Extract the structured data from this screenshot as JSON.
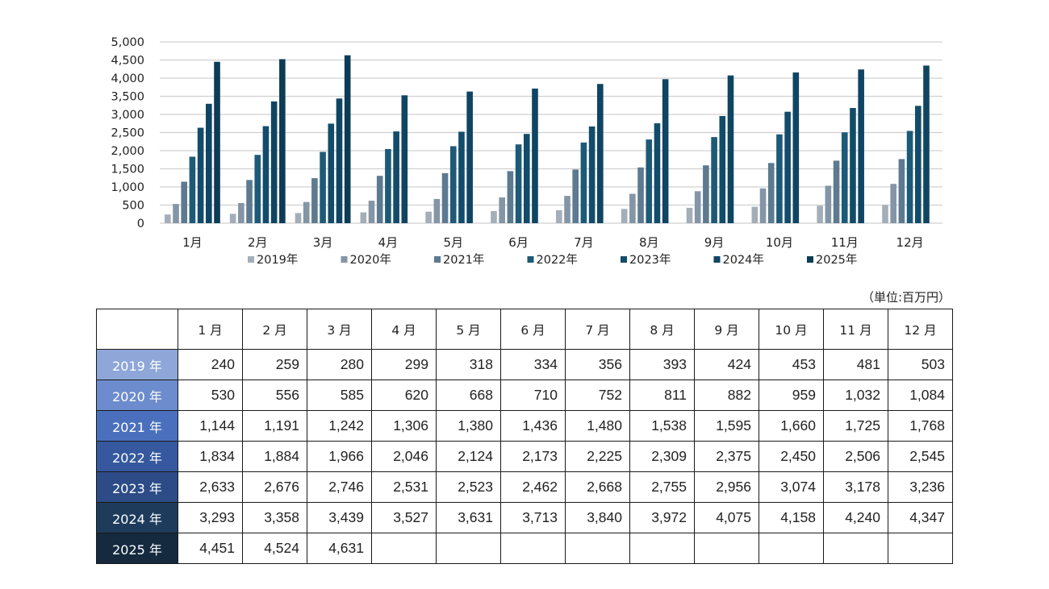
{
  "chart_data": {
    "type": "bar",
    "categories": [
      "1月",
      "2月",
      "3月",
      "4月",
      "5月",
      "6月",
      "7月",
      "8月",
      "9月",
      "10月",
      "11月",
      "12月"
    ],
    "ylim": [
      0,
      5000
    ],
    "y_ticks": [
      "0",
      "500",
      "1,000",
      "1,500",
      "2,000",
      "2,500",
      "3,000",
      "3,500",
      "4,000",
      "4,500",
      "5,000"
    ],
    "grid": true,
    "legend_position": "bottom",
    "series": [
      {
        "name": "2019年",
        "color": "#a4aeb8",
        "values": [
          240,
          259,
          280,
          299,
          318,
          334,
          356,
          393,
          424,
          453,
          481,
          503
        ]
      },
      {
        "name": "2020年",
        "color": "#8495a6",
        "values": [
          530,
          556,
          585,
          620,
          668,
          710,
          752,
          811,
          882,
          959,
          1032,
          1084
        ]
      },
      {
        "name": "2021年",
        "color": "#5d7a90",
        "values": [
          1144,
          1191,
          1242,
          1306,
          1380,
          1436,
          1480,
          1538,
          1595,
          1660,
          1725,
          1768
        ]
      },
      {
        "name": "2022年",
        "color": "#1d5a78",
        "values": [
          1834,
          1884,
          1966,
          2046,
          2124,
          2173,
          2225,
          2309,
          2375,
          2450,
          2506,
          2545
        ]
      },
      {
        "name": "2023年",
        "color": "#124c6a",
        "values": [
          2633,
          2676,
          2746,
          2531,
          2523,
          2462,
          2668,
          2755,
          2956,
          3074,
          3178,
          3236
        ]
      },
      {
        "name": "2024年",
        "color": "#0f4563",
        "values": [
          3293,
          3358,
          3439,
          3527,
          3631,
          3713,
          3840,
          3972,
          4075,
          4158,
          4240,
          4347
        ]
      },
      {
        "name": "2025年",
        "color": "#0c3b55",
        "values": [
          4451,
          4524,
          4631,
          null,
          null,
          null,
          null,
          null,
          null,
          null,
          null,
          null
        ]
      }
    ]
  },
  "table": {
    "unit_label": "（単位:百万円）",
    "header_months": [
      "1 月",
      "2 月",
      "3 月",
      "4 月",
      "5 月",
      "6 月",
      "7 月",
      "8 月",
      "9 月",
      "10 月",
      "11 月",
      "12 月"
    ],
    "rows": [
      {
        "year": "2019 年",
        "color": "#8ea6d8",
        "values": [
          "240",
          "259",
          "280",
          "299",
          "318",
          "334",
          "356",
          "393",
          "424",
          "453",
          "481",
          "503"
        ]
      },
      {
        "year": "2020 年",
        "color": "#6d8ccd",
        "values": [
          "530",
          "556",
          "585",
          "620",
          "668",
          "710",
          "752",
          "811",
          "882",
          "959",
          "1,032",
          "1,084"
        ]
      },
      {
        "year": "2021 年",
        "color": "#4a70bd",
        "values": [
          "1,144",
          "1,191",
          "1,242",
          "1,306",
          "1,380",
          "1,436",
          "1,480",
          "1,538",
          "1,595",
          "1,660",
          "1,725",
          "1,768"
        ]
      },
      {
        "year": "2022 年",
        "color": "#35589e",
        "values": [
          "1,834",
          "1,884",
          "1,966",
          "2,046",
          "2,124",
          "2,173",
          "2,225",
          "2,309",
          "2,375",
          "2,450",
          "2,506",
          "2,545"
        ]
      },
      {
        "year": "2023 年",
        "color": "#2d4c87",
        "values": [
          "2,633",
          "2,676",
          "2,746",
          "2,531",
          "2,523",
          "2,462",
          "2,668",
          "2,755",
          "2,956",
          "3,074",
          "3,178",
          "3,236"
        ]
      },
      {
        "year": "2024 年",
        "color": "#1e3b5c",
        "values": [
          "3,293",
          "3,358",
          "3,439",
          "3,527",
          "3,631",
          "3,713",
          "3,840",
          "3,972",
          "4,075",
          "4,158",
          "4,240",
          "4,347"
        ]
      },
      {
        "year": "2025 年",
        "color": "#15293f",
        "values": [
          "4,451",
          "4,524",
          "4,631",
          "",
          "",
          "",
          "",
          "",
          "",
          "",
          "",
          ""
        ]
      }
    ]
  }
}
